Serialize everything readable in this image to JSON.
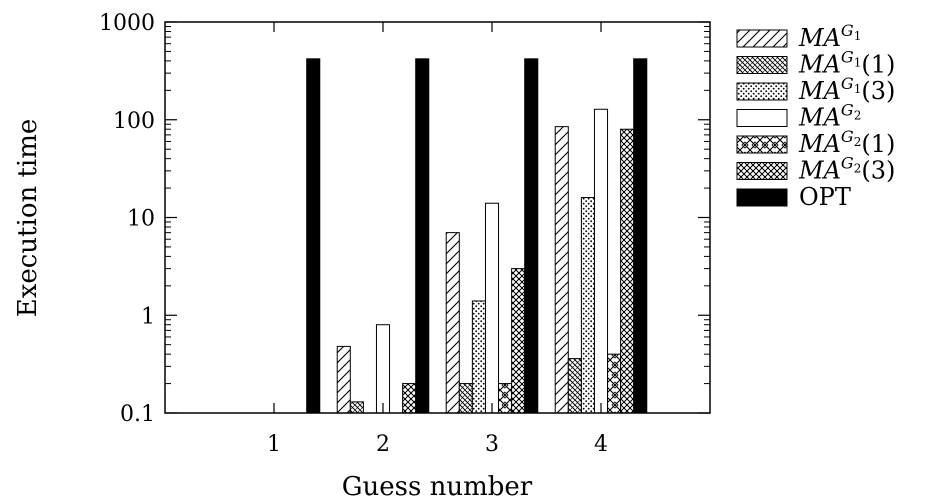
{
  "chart_data": {
    "type": "bar",
    "xlabel": "Guess number",
    "ylabel": "Execution time",
    "yscale": "log",
    "ylim": [
      0.1,
      1000
    ],
    "xlim": [
      0,
      5
    ],
    "y_ticks": [
      0.1,
      1,
      10,
      100,
      1000
    ],
    "y_tick_labels": [
      "0.1",
      "1",
      "10",
      "100",
      "1000"
    ],
    "categories": [
      "1",
      "2",
      "3",
      "4"
    ],
    "legend_position": "outside-right",
    "grid": false,
    "series": [
      {
        "name": "MA",
        "sup": "G",
        "sub": "1",
        "suffix": "",
        "pattern": "hatch-forward",
        "values": [
          null,
          0.48,
          7,
          85
        ]
      },
      {
        "name": "MA",
        "sup": "G",
        "sub": "1",
        "suffix": "(1)",
        "pattern": "hatch-dense",
        "values": [
          null,
          0.13,
          0.2,
          0.36
        ]
      },
      {
        "name": "MA",
        "sup": "G",
        "sub": "1",
        "suffix": "(3)",
        "pattern": "dots",
        "values": [
          null,
          null,
          1.4,
          16
        ]
      },
      {
        "name": "MA",
        "sup": "G",
        "sub": "2",
        "suffix": "",
        "pattern": "empty",
        "values": [
          null,
          0.8,
          14,
          128
        ]
      },
      {
        "name": "MA",
        "sup": "G",
        "sub": "2",
        "suffix": "(1)",
        "pattern": "cross",
        "values": [
          null,
          null,
          0.2,
          0.4
        ]
      },
      {
        "name": "MA",
        "sup": "G",
        "sub": "2",
        "suffix": "(3)",
        "pattern": "checker",
        "values": [
          null,
          0.2,
          3,
          80
        ]
      },
      {
        "name": "OPT",
        "sup": "",
        "sub": "",
        "suffix": "",
        "pattern": "solid",
        "values": [
          420,
          420,
          420,
          420
        ]
      }
    ]
  }
}
